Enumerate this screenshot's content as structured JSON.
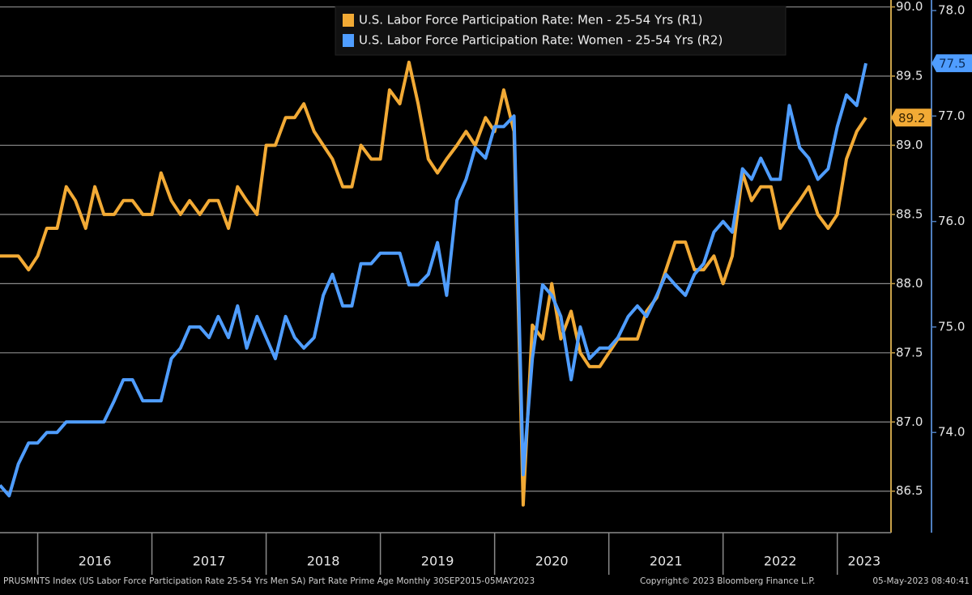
{
  "chart_data": {
    "type": "line",
    "x": [
      2015.67,
      2015.75,
      2015.83,
      2015.92,
      2016.0,
      2016.08,
      2016.17,
      2016.25,
      2016.33,
      2016.42,
      2016.5,
      2016.58,
      2016.67,
      2016.75,
      2016.83,
      2016.92,
      2017.0,
      2017.08,
      2017.17,
      2017.25,
      2017.33,
      2017.42,
      2017.5,
      2017.58,
      2017.67,
      2017.75,
      2017.83,
      2017.92,
      2018.0,
      2018.08,
      2018.17,
      2018.25,
      2018.33,
      2018.42,
      2018.5,
      2018.58,
      2018.67,
      2018.75,
      2018.83,
      2018.92,
      2019.0,
      2019.08,
      2019.17,
      2019.25,
      2019.33,
      2019.42,
      2019.5,
      2019.58,
      2019.67,
      2019.75,
      2019.83,
      2019.92,
      2020.0,
      2020.08,
      2020.17,
      2020.25,
      2020.33,
      2020.42,
      2020.5,
      2020.58,
      2020.67,
      2020.75,
      2020.83,
      2020.92,
      2021.0,
      2021.08,
      2021.17,
      2021.25,
      2021.33,
      2021.42,
      2021.5,
      2021.58,
      2021.67,
      2021.75,
      2021.83,
      2021.92,
      2022.0,
      2022.08,
      2022.17,
      2022.25,
      2022.33,
      2022.42,
      2022.5,
      2022.58,
      2022.67,
      2022.75,
      2022.83,
      2022.92,
      2023.0,
      2023.08,
      2023.17,
      2023.25
    ],
    "series": [
      {
        "name": "U.S. Labor Force Participation Rate: Men - 25-54 Yrs (R1)",
        "color": "#f2aa35",
        "axis": "y",
        "values": [
          88.2,
          88.2,
          88.2,
          88.1,
          88.2,
          88.4,
          88.4,
          88.7,
          88.6,
          88.4,
          88.7,
          88.5,
          88.5,
          88.6,
          88.6,
          88.5,
          88.5,
          88.8,
          88.6,
          88.5,
          88.6,
          88.5,
          88.6,
          88.6,
          88.4,
          88.7,
          88.6,
          88.5,
          89.0,
          89.0,
          89.2,
          89.2,
          89.3,
          89.1,
          89.0,
          88.9,
          88.7,
          88.7,
          89.0,
          88.9,
          88.9,
          89.4,
          89.3,
          89.6,
          89.3,
          88.9,
          88.8,
          88.9,
          89.0,
          89.1,
          89.0,
          89.2,
          89.1,
          89.4,
          89.1,
          86.4,
          87.7,
          87.6,
          88.0,
          87.6,
          87.8,
          87.5,
          87.4,
          87.4,
          87.5,
          87.6,
          87.6,
          87.6,
          87.8,
          87.9,
          88.1,
          88.3,
          88.3,
          88.1,
          88.1,
          88.2,
          88.0,
          88.2,
          88.8,
          88.6,
          88.7,
          88.7,
          88.4,
          88.5,
          88.6,
          88.7,
          88.5,
          88.4,
          88.5,
          88.9,
          89.1,
          89.2
        ]
      },
      {
        "name": "U.S. Labor Force Participation Rate: Women - 25-54 Yrs (R2)",
        "color": "#4f9dff",
        "axis": "y2",
        "values": [
          73.5,
          73.4,
          73.7,
          73.9,
          73.9,
          74.0,
          74.0,
          74.1,
          74.1,
          74.1,
          74.1,
          74.1,
          74.3,
          74.5,
          74.5,
          74.3,
          74.3,
          74.3,
          74.7,
          74.8,
          75.0,
          75.0,
          74.9,
          75.1,
          74.9,
          75.2,
          74.8,
          75.1,
          74.9,
          74.7,
          75.1,
          74.9,
          74.8,
          74.9,
          75.3,
          75.5,
          75.2,
          75.2,
          75.6,
          75.6,
          75.7,
          75.7,
          75.7,
          75.4,
          75.4,
          75.5,
          75.8,
          75.3,
          76.2,
          76.4,
          76.7,
          76.6,
          76.9,
          76.9,
          77.0,
          73.6,
          74.7,
          75.4,
          75.3,
          75.1,
          74.5,
          75.0,
          74.7,
          74.8,
          74.8,
          74.9,
          75.1,
          75.2,
          75.1,
          75.3,
          75.5,
          75.4,
          75.3,
          75.5,
          75.6,
          75.9,
          76.0,
          75.9,
          76.5,
          76.4,
          76.6,
          76.4,
          76.4,
          77.1,
          76.7,
          76.6,
          76.4,
          76.5,
          76.9,
          77.2,
          77.1,
          77.5
        ]
      }
    ],
    "xlim": [
      2015.67,
      2023.47
    ],
    "xticks": [
      2016,
      2017,
      2018,
      2019,
      2020,
      2021,
      2022,
      2023
    ],
    "ylim": [
      86.2,
      90.05
    ],
    "yticks": [
      {
        "value": 86.5,
        "label": "86.5"
      },
      {
        "value": 87,
        "label": "87.0"
      },
      87.5,
      {
        "value": 88,
        "label": "88.0"
      },
      88.5,
      {
        "value": 89,
        "label": "89.0"
      },
      89.5,
      {
        "value": 90,
        "label": "90.0"
      }
    ],
    "y2lim": [
      73.05,
      78.1
    ],
    "y2ticks": [
      {
        "value": 74,
        "label": "74.0"
      },
      {
        "value": 75,
        "label": "75.0"
      },
      {
        "value": 76,
        "label": "76.0"
      },
      {
        "value": 77,
        "label": "77.0"
      },
      {
        "value": 78,
        "label": "78.0"
      }
    ],
    "grid": true,
    "legend": "top",
    "footer": {
      "source": "PRUSMNTS Index (US Labor Force Participation Rate 25-54 Yrs Men SA) Part Rate Prime Age  Monthly 30SEP2015-05MAY2023",
      "copyright": "Copyright© 2023 Bloomberg Finance L.P.",
      "timestamp": "05-May-2023 08:40:41"
    }
  }
}
